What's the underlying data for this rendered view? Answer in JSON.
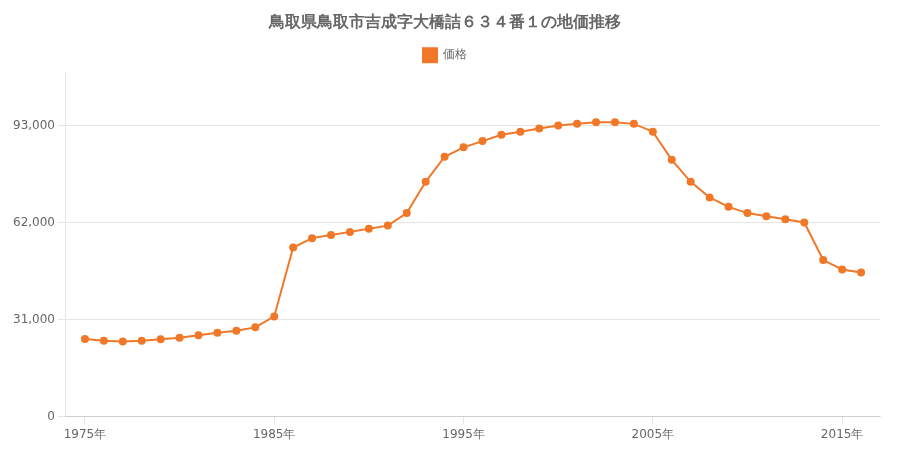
{
  "chart_data": {
    "type": "line",
    "title": "鳥取県鳥取市吉成字大橋詰６３４番１の地価推移",
    "x": [
      1975,
      1976,
      1977,
      1978,
      1979,
      1980,
      1981,
      1982,
      1983,
      1984,
      1985,
      1986,
      1987,
      1988,
      1989,
      1990,
      1991,
      1992,
      1993,
      1994,
      1995,
      1996,
      1997,
      1998,
      1999,
      2000,
      2001,
      2002,
      2003,
      2004,
      2005,
      2006,
      2007,
      2008,
      2009,
      2010,
      2011,
      2012,
      2013,
      2014,
      2015,
      2016
    ],
    "series": [
      {
        "name": "価格",
        "color": "#f07828",
        "marker": "circle",
        "values": [
          24800,
          24200,
          24000,
          24200,
          24700,
          25200,
          26000,
          26800,
          27400,
          28500,
          32000,
          54000,
          57000,
          58000,
          59000,
          60000,
          61000,
          65000,
          75000,
          83000,
          86000,
          88000,
          90000,
          91000,
          92000,
          93000,
          93500,
          94000,
          94000,
          93500,
          91000,
          82000,
          75000,
          70000,
          67000,
          65000,
          64000,
          63000,
          62000,
          50000,
          47000,
          46000
        ]
      }
    ],
    "xlim": [
      1974,
      2017
    ],
    "xticks": [
      {
        "value": 1975,
        "label": "1975年"
      },
      {
        "value": 1985,
        "label": "1985年"
      },
      {
        "value": 1995,
        "label": "1995年"
      },
      {
        "value": 2005,
        "label": "2005年"
      },
      {
        "value": 2015,
        "label": "2015年"
      }
    ],
    "ylim": [
      0,
      110000
    ],
    "yticks": [
      0,
      {
        "value": 31000,
        "label": "31,000"
      },
      {
        "value": 62000,
        "label": "62,000"
      },
      {
        "value": 93000,
        "label": "93,000"
      }
    ],
    "grid": "y",
    "legend": "top"
  }
}
